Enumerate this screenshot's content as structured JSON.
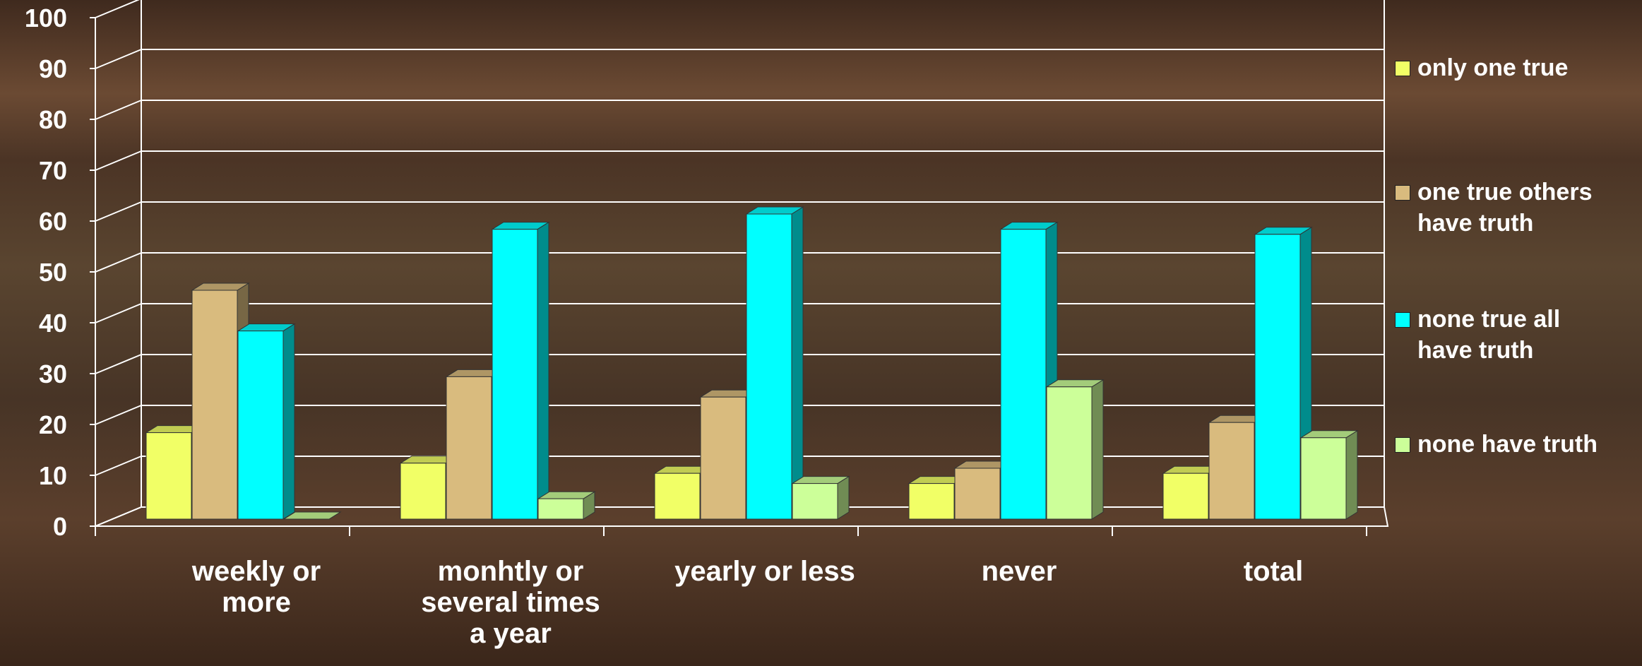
{
  "chart_data": {
    "type": "bar",
    "categories": [
      "weekly or more",
      "monhtly or several times a year",
      "yearly or less",
      "never",
      "total"
    ],
    "category_lines": [
      [
        "weekly or",
        "more"
      ],
      [
        "monhtly or",
        "several times",
        "a year"
      ],
      [
        "yearly or less"
      ],
      [
        "never"
      ],
      [
        "total"
      ]
    ],
    "series": [
      {
        "name": "only one true",
        "values": [
          17,
          11,
          9,
          7,
          9
        ],
        "color": "#f1ff66"
      },
      {
        "name": "one true others have truth",
        "values": [
          45,
          28,
          24,
          10,
          19
        ],
        "color": "#d9bb7e"
      },
      {
        "name": "none true all have truth",
        "values": [
          37,
          57,
          60,
          57,
          56
        ],
        "color": "#00ffff"
      },
      {
        "name": "none have truth",
        "values": [
          0,
          4,
          7,
          26,
          16
        ],
        "color": "#ccff99"
      }
    ],
    "legend_lines": [
      [
        "only one true"
      ],
      [
        "one true others",
        "have truth"
      ],
      [
        "none true all",
        "have truth"
      ],
      [
        "none have truth"
      ]
    ],
    "yticks": [
      0,
      10,
      20,
      30,
      40,
      50,
      60,
      70,
      80,
      90,
      100
    ],
    "ylim": [
      0,
      100
    ],
    "grid": true,
    "legend_position": "right",
    "title": "",
    "xlabel": "",
    "ylabel": ""
  }
}
